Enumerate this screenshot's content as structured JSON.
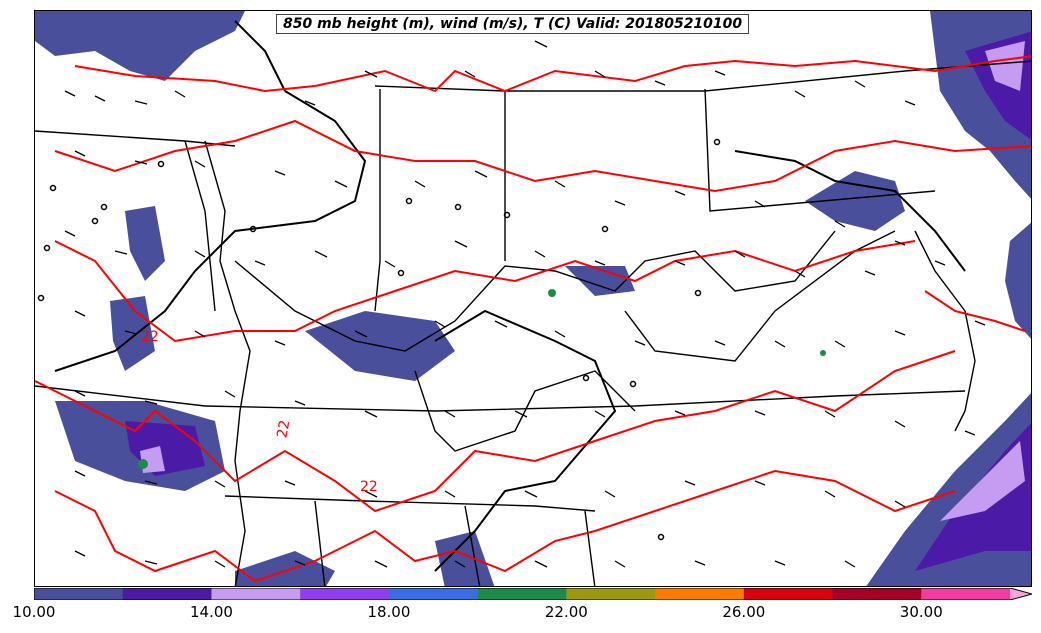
{
  "title": "850 mb height (m), wind (m/s), T (C) Valid: 201805210100",
  "contour_labels": [
    "22",
    "22",
    "22"
  ],
  "colorbar": {
    "colors": [
      "#4a4f9c",
      "#4b1aa6",
      "#c69cf2",
      "#8f3ff0",
      "#3a6de3",
      "#1e8a4a",
      "#9a9a10",
      "#ff7a00",
      "#d90010",
      "#a50025",
      "#f23ca0",
      "#f7a3d6"
    ],
    "ticks": [
      "10.00",
      "14.00",
      "18.00",
      "22.00",
      "26.00",
      "30.00"
    ]
  },
  "styles": {
    "temperature_contour": "#ff0000",
    "height_contour": "#000000",
    "shade_light": "#4a4f9c",
    "shade_mid": "#4b1aa6",
    "shade_lavender": "#c69cf2",
    "shade_green": "#1e8a4a"
  }
}
